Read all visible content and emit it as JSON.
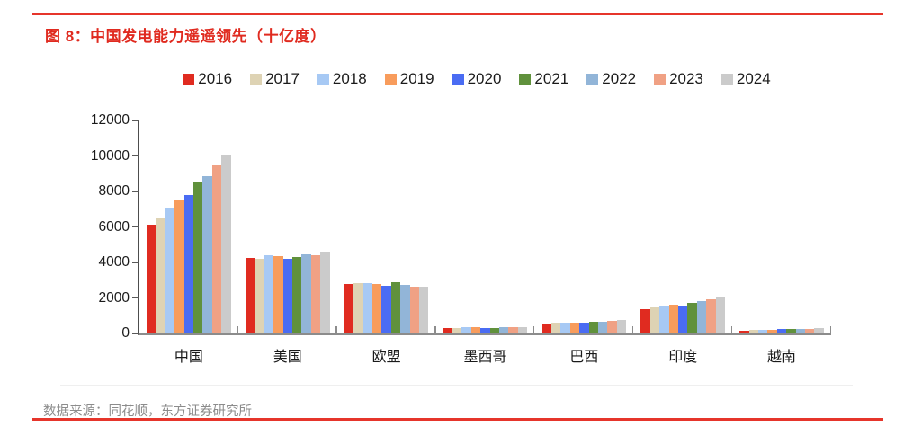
{
  "title": "图 8：中国发电能力遥遥领先（十亿度）",
  "source": "数据来源：同花顺，东方证券研究所",
  "accent_colors": {
    "rule_red": "#e6352b",
    "title_red": "#e02a1f",
    "axis_dark": "#4d4d4d",
    "axis_gray": "#8c8c8c",
    "source_gray": "#8c8c8c"
  },
  "chart_data": {
    "type": "bar",
    "title": "图 8：中国发电能力遥遥领先（十亿度）",
    "unit": "十亿度",
    "categories": [
      "中国",
      "美国",
      "欧盟",
      "墨西哥",
      "巴西",
      "印度",
      "越南"
    ],
    "series": [
      {
        "name": "2016",
        "color": "#e02b20",
        "values": [
          6142,
          4250,
          2800,
          319,
          579,
          1372,
          176
        ]
      },
      {
        "name": "2017",
        "color": "#ded3b4",
        "values": [
          6495,
          4210,
          2860,
          329,
          588,
          1450,
          192
        ]
      },
      {
        "name": "2018",
        "color": "#a7c9f4",
        "values": [
          7111,
          4400,
          2850,
          336,
          601,
          1561,
          209
        ]
      },
      {
        "name": "2019",
        "color": "#f89c5c",
        "values": [
          7504,
          4350,
          2810,
          339,
          626,
          1620,
          227
        ]
      },
      {
        "name": "2020",
        "color": "#4a6cf3",
        "values": [
          7779,
          4200,
          2680,
          313,
          621,
          1560,
          235
        ]
      },
      {
        "name": "2021",
        "color": "#60913c",
        "values": [
          8534,
          4300,
          2890,
          327,
          656,
          1700,
          244
        ]
      },
      {
        "name": "2022",
        "color": "#92b5d8",
        "values": [
          8849,
          4480,
          2740,
          337,
          677,
          1810,
          262
        ]
      },
      {
        "name": "2023",
        "color": "#f0a184",
        "values": [
          9456,
          4430,
          2620,
          341,
          708,
          1920,
          276
        ]
      },
      {
        "name": "2024",
        "color": "#cbcbcb",
        "values": [
          10087,
          4600,
          2660,
          346,
          740,
          2030,
          308
        ]
      }
    ],
    "ylim": [
      0,
      12000
    ],
    "yticks": [
      0,
      2000,
      4000,
      6000,
      8000,
      10000,
      12000
    ],
    "grid": false,
    "legend_position": "top"
  }
}
